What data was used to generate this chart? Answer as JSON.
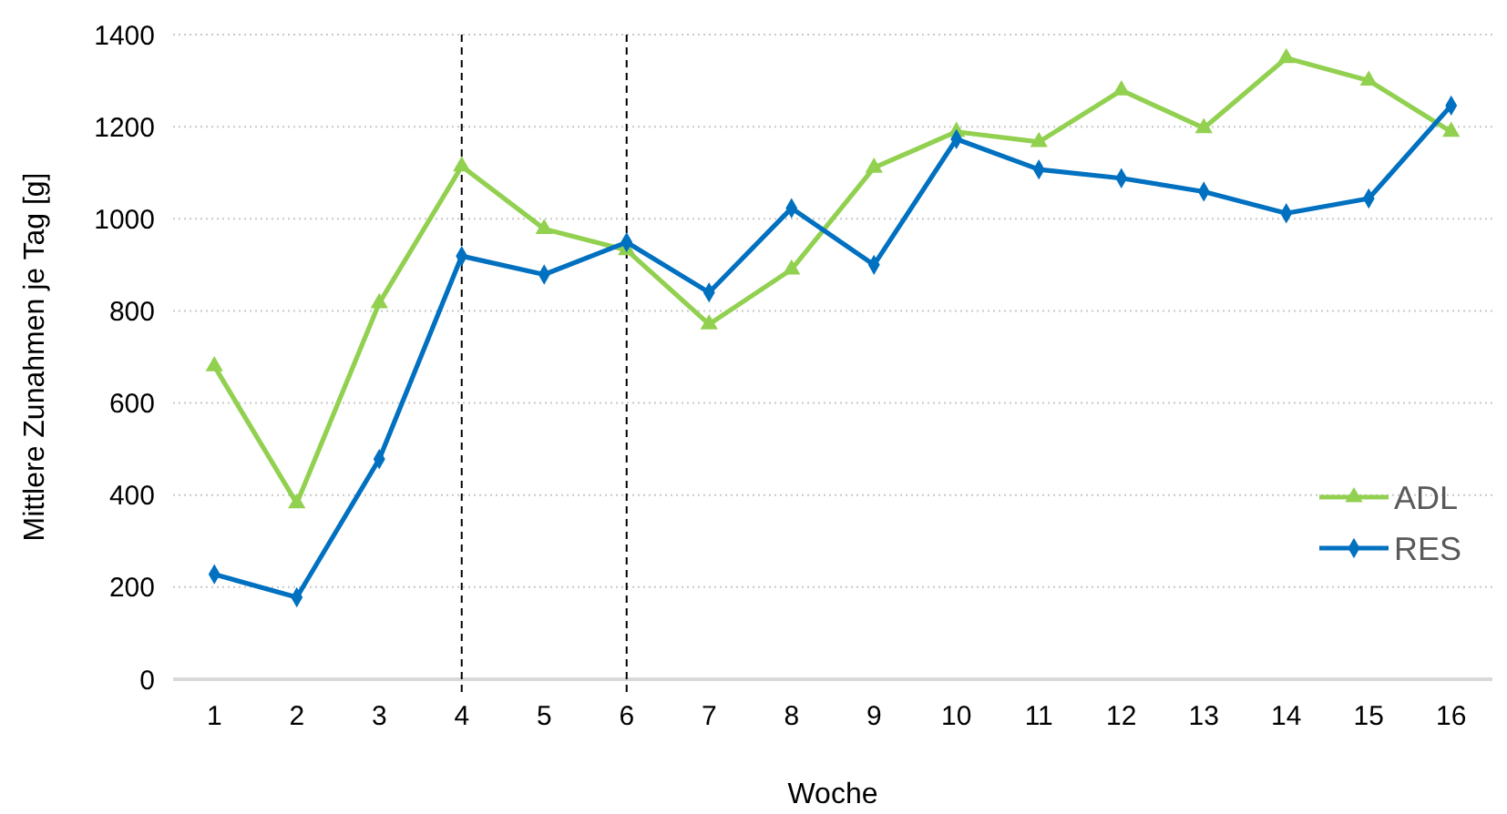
{
  "chart_data": {
    "type": "line",
    "xlabel": "Woche",
    "ylabel": "Mittlere Zunahmen je Tag [g]",
    "x": [
      1,
      2,
      3,
      4,
      5,
      6,
      7,
      8,
      9,
      10,
      11,
      12,
      13,
      14,
      15,
      16
    ],
    "xlim": [
      0.5,
      16.5
    ],
    "xticks": [
      1,
      2,
      3,
      4,
      5,
      6,
      7,
      8,
      9,
      10,
      11,
      12,
      13,
      14,
      15,
      16
    ],
    "ylim": [
      0,
      1400
    ],
    "yticks": [
      0,
      200,
      400,
      600,
      800,
      1000,
      1200,
      1400
    ],
    "grid": "y",
    "legend": "bottom right",
    "ref_lines": [
      {
        "axis": "x",
        "value": 4,
        "line_style": "dashed",
        "color": "#000000"
      },
      {
        "axis": "x",
        "value": 6,
        "line_style": "dashed",
        "color": "#000000"
      }
    ],
    "series": [
      {
        "name": "ADL",
        "color": "#92d050",
        "marker": "triangle",
        "values": [
          680,
          382,
          817,
          1114,
          978,
          932,
          771,
          890,
          1111,
          1189,
          1167,
          1279,
          1197,
          1349,
          1300,
          1189
        ]
      },
      {
        "name": "RES",
        "color": "#0070c0",
        "marker": "diamond",
        "values": [
          228,
          178,
          478,
          919,
          879,
          949,
          840,
          1023,
          900,
          1173,
          1107,
          1088,
          1059,
          1012,
          1044,
          1246
        ]
      }
    ]
  }
}
